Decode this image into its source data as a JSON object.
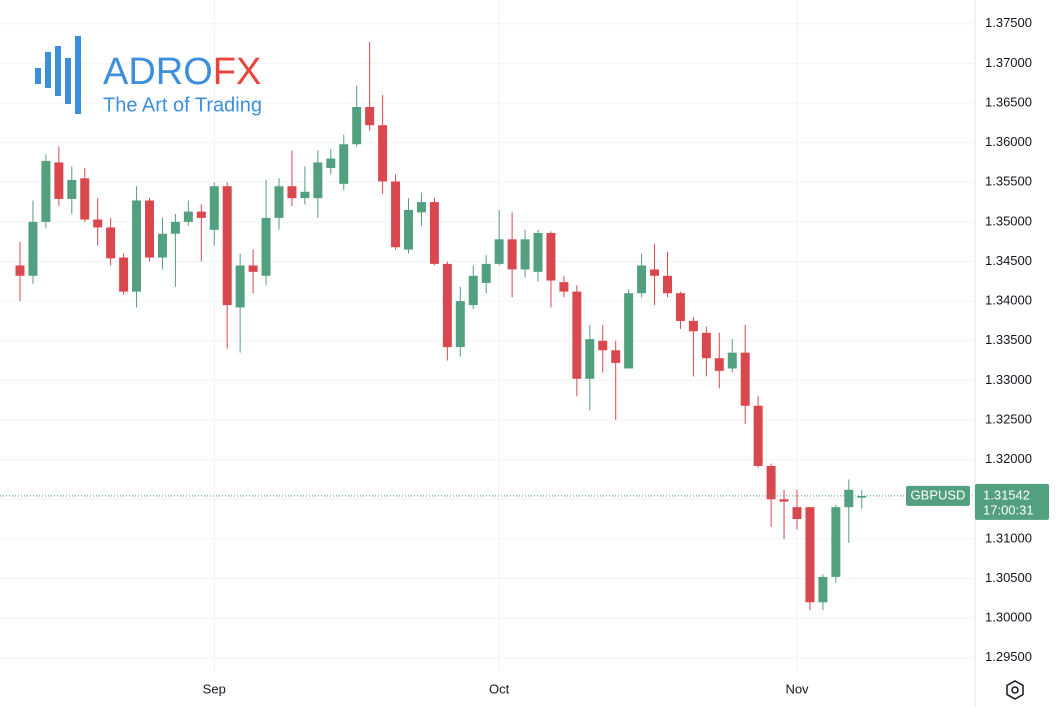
{
  "logo": {
    "brand_a": "ADRO",
    "brand_b": "FX",
    "tagline": "The Art of Trading"
  },
  "chart_data": {
    "type": "candlestick",
    "symbol": "GBPUSD",
    "countdown": "17:00:31",
    "last_price": {
      "value": 1.31542,
      "label": "1.31542"
    },
    "up_color": "#52a07f",
    "down_color": "#d9484f",
    "grid": true,
    "categories": [
      null,
      null,
      null,
      null,
      null,
      null,
      null,
      null,
      null,
      null,
      null,
      null,
      null,
      null,
      null,
      "Sep",
      null,
      null,
      null,
      null,
      null,
      null,
      null,
      null,
      null,
      null,
      null,
      null,
      null,
      null,
      null,
      null,
      null,
      null,
      null,
      null,
      null,
      "Oct",
      null,
      null,
      null,
      null,
      null,
      null,
      null,
      null,
      null,
      null,
      null,
      null,
      null,
      null,
      null,
      null,
      null,
      null,
      null,
      null,
      null,
      null,
      "Nov",
      null,
      null,
      null,
      null,
      null
    ],
    "open": [
      1.3445,
      1.3432,
      1.35,
      1.3575,
      1.3529,
      1.3555,
      1.3503,
      1.3493,
      1.3455,
      1.3412,
      1.3527,
      1.3455,
      1.3485,
      1.35,
      1.3513,
      1.349,
      1.3545,
      1.3392,
      1.3445,
      1.3432,
      1.3505,
      1.3545,
      1.353,
      1.353,
      1.3568,
      1.3548,
      1.3598,
      1.3645,
      1.3622,
      1.3551,
      1.3465,
      1.3512,
      1.3525,
      1.3447,
      1.3342,
      1.3395,
      1.3423,
      1.3447,
      1.3478,
      1.344,
      1.3437,
      1.3486,
      1.3424,
      1.3412,
      1.3302,
      1.335,
      1.3338,
      1.3315,
      1.341,
      1.344,
      1.3432,
      1.341,
      1.3375,
      1.336,
      1.3328,
      1.3315,
      1.3335,
      1.3268,
      1.3192,
      1.315,
      1.314,
      1.314,
      1.302,
      1.3052,
      1.314,
      1.3152
    ],
    "high": [
      1.3475,
      1.3527,
      1.3585,
      1.3595,
      1.357,
      1.3568,
      1.353,
      1.3505,
      1.346,
      1.3545,
      1.353,
      1.3505,
      1.351,
      1.3527,
      1.3522,
      1.355,
      1.355,
      1.346,
      1.3465,
      1.3553,
      1.3555,
      1.359,
      1.357,
      1.359,
      1.3592,
      1.361,
      1.3672,
      1.3727,
      1.366,
      1.356,
      1.353,
      1.3537,
      1.353,
      1.345,
      1.3418,
      1.3445,
      1.3458,
      1.3515,
      1.3512,
      1.349,
      1.349,
      1.3488,
      1.3432,
      1.342,
      1.337,
      1.337,
      1.335,
      1.3415,
      1.346,
      1.3472,
      1.3462,
      1.3412,
      1.338,
      1.3368,
      1.336,
      1.3352,
      1.337,
      1.328,
      1.3195,
      1.3162,
      1.3162,
      1.314,
      1.3055,
      1.3143,
      1.3175,
      1.3162
    ],
    "low": [
      1.34,
      1.3422,
      1.3492,
      1.352,
      1.351,
      1.35,
      1.347,
      1.3445,
      1.3408,
      1.3392,
      1.345,
      1.344,
      1.3418,
      1.3495,
      1.345,
      1.347,
      1.334,
      1.3335,
      1.341,
      1.342,
      1.349,
      1.352,
      1.3522,
      1.3505,
      1.356,
      1.354,
      1.3595,
      1.3615,
      1.3535,
      1.3465,
      1.346,
      1.3495,
      1.3445,
      1.3325,
      1.333,
      1.339,
      1.341,
      1.3445,
      1.3405,
      1.343,
      1.3425,
      1.3392,
      1.3405,
      1.328,
      1.3262,
      1.331,
      1.325,
      1.3315,
      1.3405,
      1.3395,
      1.3405,
      1.3365,
      1.3305,
      1.3305,
      1.329,
      1.331,
      1.3245,
      1.319,
      1.3115,
      1.31,
      1.3112,
      1.301,
      1.301,
      1.3045,
      1.3095,
      1.3138
    ],
    "close": [
      1.3432,
      1.35,
      1.3577,
      1.3529,
      1.3553,
      1.3503,
      1.3493,
      1.3454,
      1.3412,
      1.3527,
      1.3455,
      1.3485,
      1.35,
      1.3513,
      1.3505,
      1.3545,
      1.3395,
      1.3445,
      1.3437,
      1.3505,
      1.3545,
      1.353,
      1.3538,
      1.3575,
      1.358,
      1.3598,
      1.3645,
      1.3622,
      1.3551,
      1.3468,
      1.3515,
      1.3525,
      1.3447,
      1.3342,
      1.34,
      1.3432,
      1.3447,
      1.3478,
      1.344,
      1.3478,
      1.3486,
      1.3426,
      1.3412,
      1.3302,
      1.3352,
      1.3338,
      1.3322,
      1.341,
      1.3445,
      1.3432,
      1.341,
      1.3375,
      1.3362,
      1.3328,
      1.3312,
      1.3335,
      1.3268,
      1.3192,
      1.315,
      1.3147,
      1.3125,
      1.302,
      1.3052,
      1.314,
      1.3162,
      1.31542
    ],
    "ylim": [
      1.2932,
      1.378
    ],
    "yticks": [
      {
        "value": 1.295,
        "label": "1.29500"
      },
      {
        "value": 1.3,
        "label": "1.30000"
      },
      {
        "value": 1.305,
        "label": "1.30500"
      },
      {
        "value": 1.31,
        "label": "1.31000"
      },
      {
        "value": 1.315,
        "label": "1.31500"
      },
      {
        "value": 1.32,
        "label": "1.32000"
      },
      {
        "value": 1.325,
        "label": "1.32500"
      },
      {
        "value": 1.33,
        "label": "1.33000"
      },
      {
        "value": 1.335,
        "label": "1.33500"
      },
      {
        "value": 1.34,
        "label": "1.34000"
      },
      {
        "value": 1.345,
        "label": "1.34500"
      },
      {
        "value": 1.35,
        "label": "1.35000"
      },
      {
        "value": 1.355,
        "label": "1.35500"
      },
      {
        "value": 1.36,
        "label": "1.36000"
      },
      {
        "value": 1.365,
        "label": "1.36500"
      },
      {
        "value": 1.37,
        "label": "1.37000"
      },
      {
        "value": 1.375,
        "label": "1.37500"
      }
    ]
  }
}
